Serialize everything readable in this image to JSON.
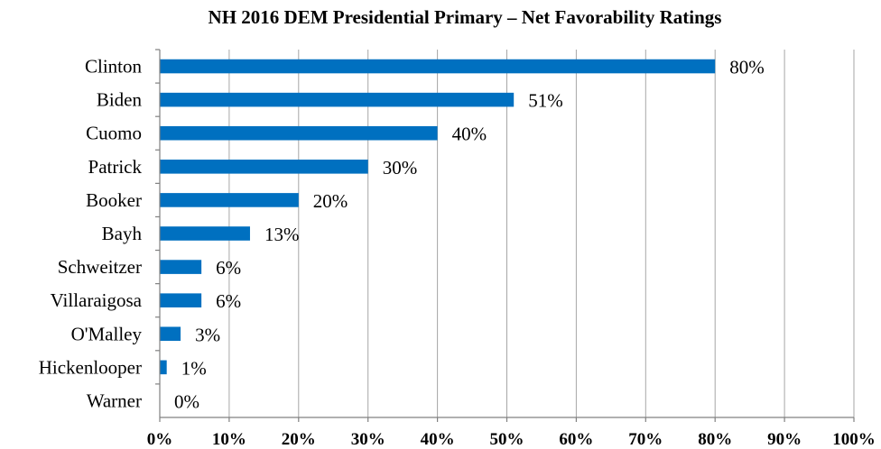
{
  "chart_data": {
    "type": "bar",
    "orientation": "horizontal",
    "title": "NH 2016 DEM Presidential Primary – Net Favorability Ratings",
    "categories": [
      "Clinton",
      "Biden",
      "Cuomo",
      "Patrick",
      "Booker",
      "Bayh",
      "Schweitzer",
      "Villaraigosa",
      "O'Malley",
      "Hickenlooper",
      "Warner"
    ],
    "values": [
      80,
      51,
      40,
      30,
      20,
      13,
      6,
      6,
      3,
      1,
      0
    ],
    "data_labels": [
      "80%",
      "51%",
      "40%",
      "30%",
      "20%",
      "13%",
      "6%",
      "6%",
      "3%",
      "1%",
      "0%"
    ],
    "xlabel": "",
    "ylabel": "",
    "xlim": [
      0,
      100
    ],
    "x_ticks": [
      0,
      10,
      20,
      30,
      40,
      50,
      60,
      70,
      80,
      90,
      100
    ],
    "x_tick_labels": [
      "0%",
      "10%",
      "20%",
      "30%",
      "40%",
      "50%",
      "60%",
      "70%",
      "80%",
      "90%",
      "100%"
    ],
    "grid": "vertical",
    "legend": "none",
    "bar_color": "#0070C0"
  }
}
